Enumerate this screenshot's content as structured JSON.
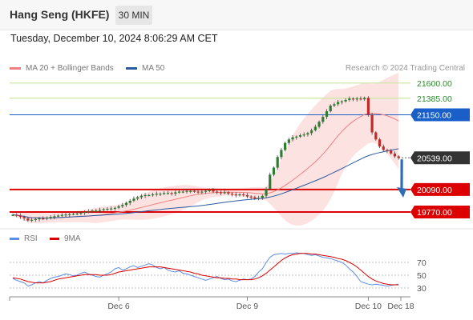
{
  "header": {
    "title": "Hang Seng (HKFE)",
    "interval": "30 MIN",
    "datetime": "Tuesday, December 10, 2024 8:06:29 AM CET"
  },
  "legend": {
    "item1": "MA 20 + Bollinger Bands",
    "item2": "MA 50",
    "rsi": "RSI",
    "ma9": "9MA",
    "credit": "Research © 2024 Trading Central"
  },
  "colors": {
    "ma20": "#f08080",
    "ma50": "#2c5aa0",
    "band_fill": "#fde2e2",
    "support": "#dd0000",
    "resistance": "#c8e6a0",
    "pivot": "#1a5fc8",
    "current": "#333333",
    "candle_up": "#2e7d32",
    "candle_down": "#c62828",
    "rsi": "#5b8ee6",
    "rsi_ma": "#dd0000",
    "arrow": "#2d6db5"
  },
  "chart_data": {
    "type": "candlestick",
    "price_levels": [
      {
        "label": "21600.00",
        "value": 21600,
        "kind": "resistance"
      },
      {
        "label": "21385.00",
        "value": 21385,
        "kind": "resistance"
      },
      {
        "label": "21150.00",
        "value": 21150,
        "kind": "pivot"
      },
      {
        "label": "20539.00",
        "value": 20539,
        "kind": "last"
      },
      {
        "label": "20090.00",
        "value": 20090,
        "kind": "support"
      },
      {
        "label": "19770.00",
        "value": 19770,
        "kind": "support"
      }
    ],
    "x_ticks": [
      "Dec 6",
      "Dec 9",
      "Dec 10",
      "Dec 18"
    ],
    "x_tick_index": [
      28,
      62,
      94,
      114
    ],
    "price_range": [
      19600,
      21700
    ],
    "close": [
      19730,
      19720,
      19700,
      19680,
      19650,
      19660,
      19670,
      19680,
      19675,
      19690,
      19700,
      19710,
      19720,
      19730,
      19735,
      19740,
      19745,
      19750,
      19760,
      19770,
      19780,
      19790,
      19790,
      19800,
      19810,
      19815,
      19820,
      19830,
      19850,
      19870,
      19900,
      19930,
      19960,
      19980,
      20000,
      20010,
      20010,
      20020,
      20030,
      20030,
      20040,
      20040,
      20030,
      20050,
      20060,
      20060,
      20070,
      20070,
      20060,
      20050,
      20060,
      20070,
      20080,
      20060,
      20050,
      20040,
      20050,
      20030,
      20020,
      20010,
      20020,
      20010,
      19990,
      19980,
      19960,
      19970,
      20000,
      20100,
      20300,
      20400,
      20550,
      20650,
      20750,
      20800,
      20830,
      20840,
      20860,
      20870,
      20890,
      20930,
      20980,
      21050,
      21120,
      21200,
      21280,
      21300,
      21330,
      21340,
      21360,
      21380,
      21370,
      21380,
      21370,
      21390,
      21150,
      20900,
      20800,
      20700,
      20650,
      20640,
      20600,
      20560,
      20540
    ],
    "rsi": {
      "levels": [
        70,
        50,
        30
      ],
      "range": [
        20,
        90
      ],
      "rsi": [
        45,
        42,
        40,
        38,
        33,
        35,
        38,
        40,
        38,
        42,
        45,
        47,
        48,
        50,
        52,
        51,
        49,
        50,
        53,
        55,
        52,
        50,
        48,
        47,
        50,
        52,
        55,
        60,
        62,
        58,
        60,
        63,
        65,
        62,
        64,
        66,
        68,
        66,
        62,
        60,
        62,
        58,
        56,
        55,
        57,
        53,
        52,
        50,
        48,
        46,
        44,
        42,
        44,
        46,
        48,
        45,
        43,
        44,
        41,
        40,
        42,
        44,
        43,
        44,
        48,
        55,
        60,
        70,
        78,
        82,
        83,
        84,
        83,
        84,
        84,
        85,
        84,
        84,
        82,
        81,
        82,
        80,
        78,
        77,
        76,
        74,
        72,
        70,
        66,
        60,
        55,
        48,
        40,
        38,
        36,
        35,
        36,
        35,
        34,
        33,
        34,
        35,
        36
      ],
      "ma": [
        46,
        45,
        44,
        42,
        40,
        39,
        38,
        38,
        38,
        39,
        40,
        42,
        44,
        45,
        46,
        47,
        48,
        49,
        50,
        51,
        51,
        51,
        51,
        50,
        50,
        50,
        51,
        53,
        55,
        56,
        57,
        58,
        59,
        60,
        61,
        62,
        63,
        63,
        63,
        63,
        62,
        61,
        60,
        59,
        58,
        57,
        56,
        55,
        53,
        52,
        50,
        49,
        48,
        47,
        46,
        46,
        45,
        45,
        44,
        44,
        43,
        43,
        43,
        43,
        44,
        46,
        49,
        53,
        58,
        63,
        68,
        73,
        77,
        80,
        82,
        83,
        84,
        84,
        84,
        83,
        83,
        82,
        81,
        80,
        79,
        78,
        76,
        75,
        73,
        70,
        67,
        63,
        58,
        53,
        48,
        44,
        41,
        39,
        37,
        36,
        35,
        35,
        35
      ]
    }
  }
}
